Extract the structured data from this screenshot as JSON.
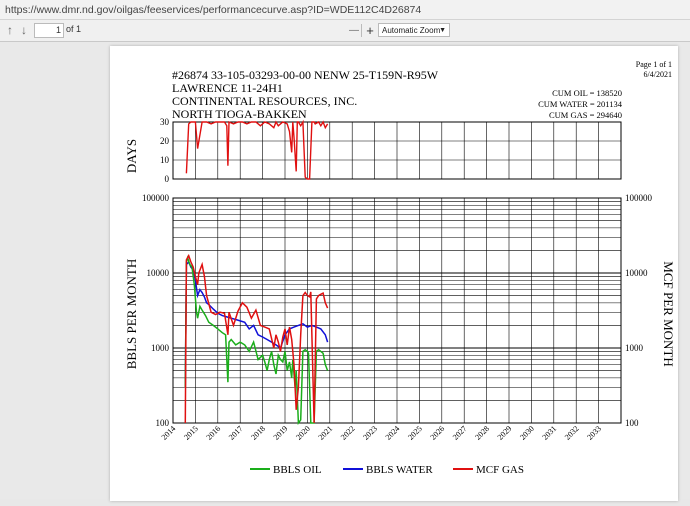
{
  "browser": {
    "url": "https://www.dmr.nd.gov/oilgas/feeservices/performancecurve.asp?ID=WDE112C4D26874"
  },
  "pdf_toolbar": {
    "page_number": "1",
    "page_total": "of 1",
    "zoom_label": "Automatic Zoom",
    "zoom_out": "—",
    "zoom_in": "+"
  },
  "report": {
    "page_label": "Page 1 of 1",
    "date": "6/4/2021",
    "header_line1": "#26874   33-105-03293-00-00   NENW 25-T159N-R95W",
    "header_line2": "LAWRENCE  11-24H1",
    "header_line3": "CONTINENTAL RESOURCES, INC.",
    "header_line4": "NORTH TIOGA-BAKKEN",
    "cum_oil": "CUM OIL = 138520",
    "cum_water": "CUM WATER = 201134",
    "cum_gas": "CUM GAS = 294640",
    "days_axis_label": "DAYS",
    "left_axis_label": "BBLS PER MONTH",
    "right_axis_label": "MCF PER MONTH",
    "days_ticks": [
      "30",
      "20",
      "10",
      "0"
    ],
    "log_ticks": [
      "100000",
      "10000",
      "1000",
      "100"
    ],
    "year_labels": [
      "2014",
      "2015",
      "2016",
      "2017",
      "2018",
      "2019",
      "2020",
      "2021",
      "2022",
      "2023",
      "2024",
      "2025",
      "2026",
      "2027",
      "2028",
      "2029",
      "2030",
      "2031",
      "2032",
      "2033"
    ],
    "legend": {
      "oil": "BBLS OIL",
      "water": "BBLS WATER",
      "gas": "MCF GAS"
    }
  },
  "colors": {
    "oil": "#1aae1a",
    "water": "#1010d8",
    "gas": "#e01010"
  },
  "chart_data": {
    "type": "line",
    "x_range": [
      2014,
      2034
    ],
    "days": {
      "y_range": [
        0,
        30
      ],
      "x": [
        2014.6,
        2014.7,
        2014.8,
        2015.0,
        2015.1,
        2015.3,
        2015.5,
        2015.7,
        2015.9,
        2016.1,
        2016.3,
        2016.4,
        2016.45,
        2016.5,
        2016.7,
        2016.9,
        2017.1,
        2017.3,
        2017.5,
        2017.7,
        2017.9,
        2018.1,
        2018.3,
        2018.5,
        2018.6,
        2018.7,
        2018.9,
        2019.1,
        2019.2,
        2019.3,
        2019.35,
        2019.4,
        2019.5,
        2019.55,
        2019.6,
        2019.7,
        2019.8,
        2019.9,
        2020.0,
        2020.1,
        2020.2,
        2020.3,
        2020.35,
        2020.5,
        2020.6,
        2020.7,
        2020.8,
        2020.9
      ],
      "values": [
        3,
        29,
        30,
        30,
        16,
        30,
        30,
        29,
        30,
        30,
        30,
        28,
        7,
        30,
        29,
        30,
        30,
        29,
        30,
        30,
        28,
        30,
        29,
        27,
        30,
        28,
        30,
        29,
        25,
        14,
        30,
        22,
        4,
        30,
        30,
        28,
        30,
        1,
        0,
        0,
        30,
        30,
        29,
        30,
        28,
        30,
        27,
        29
      ]
    },
    "production": {
      "y_scale": "log",
      "y_range": [
        100,
        100000
      ],
      "series": [
        {
          "name": "BBLS OIL",
          "x": [
            2014.55,
            2014.6,
            2014.65,
            2014.75,
            2014.85,
            2014.95,
            2015.05,
            2015.1,
            2015.2,
            2015.3,
            2015.45,
            2015.6,
            2015.8,
            2016.0,
            2016.2,
            2016.35,
            2016.45,
            2016.5,
            2016.6,
            2016.8,
            2017.0,
            2017.2,
            2017.4,
            2017.6,
            2017.8,
            2018.0,
            2018.1,
            2018.2,
            2018.3,
            2018.4,
            2018.5,
            2018.6,
            2018.7,
            2018.8,
            2018.9,
            2019.0,
            2019.1,
            2019.2,
            2019.3,
            2019.35,
            2019.45,
            2019.5,
            2019.6,
            2019.7,
            2019.8,
            2019.9,
            2020.0,
            2020.05,
            2020.15,
            2020.3,
            2020.4,
            2020.5,
            2020.6,
            2020.7,
            2020.8,
            2020.9
          ],
          "values": [
            300,
            14000,
            16000,
            13000,
            12000,
            7000,
            3000,
            2500,
            3600,
            3200,
            2700,
            2200,
            2000,
            1800,
            1600,
            1500,
            350,
            1200,
            1300,
            1100,
            1200,
            1100,
            900,
            1200,
            700,
            800,
            650,
            500,
            700,
            900,
            600,
            450,
            800,
            700,
            650,
            900,
            500,
            650,
            400,
            700,
            300,
            500,
            100,
            110,
            900,
            950,
            900,
            850,
            100,
            100,
            900,
            950,
            900,
            850,
            600,
            500
          ]
        },
        {
          "name": "BBLS WATER",
          "x": [
            2014.55,
            2014.6,
            2014.7,
            2014.8,
            2014.9,
            2015.0,
            2015.1,
            2015.2,
            2015.3,
            2015.4,
            2015.5,
            2015.6,
            2015.8,
            2016.0,
            2016.2,
            2016.4,
            2016.6,
            2016.8,
            2017.0,
            2017.2,
            2017.4,
            2017.6,
            2017.8,
            2018.0,
            2018.2,
            2018.4,
            2018.6,
            2018.8,
            2019.0,
            2019.2,
            2019.4,
            2019.6,
            2019.8,
            2020.0,
            2020.2,
            2020.4,
            2020.6,
            2020.8,
            2020.9
          ],
          "values": [
            300,
            13000,
            14000,
            12000,
            11000,
            8000,
            5000,
            6000,
            5500,
            4800,
            4000,
            3800,
            3300,
            2900,
            2700,
            2600,
            2500,
            2400,
            2300,
            2200,
            1800,
            2000,
            1500,
            1400,
            1300,
            1200,
            1100,
            1000,
            1500,
            1800,
            1900,
            2000,
            2100,
            1900,
            2000,
            1900,
            1800,
            1500,
            1200
          ]
        },
        {
          "name": "MCF GAS",
          "x": [
            2014.55,
            2014.6,
            2014.7,
            2014.8,
            2014.9,
            2015.0,
            2015.1,
            2015.15,
            2015.3,
            2015.4,
            2015.5,
            2015.7,
            2015.9,
            2016.1,
            2016.3,
            2016.45,
            2016.5,
            2016.7,
            2016.9,
            2017.1,
            2017.3,
            2017.5,
            2017.7,
            2017.9,
            2018.1,
            2018.3,
            2018.5,
            2018.6,
            2018.7,
            2018.8,
            2018.9,
            2019.0,
            2019.1,
            2019.2,
            2019.3,
            2019.4,
            2019.5,
            2019.6,
            2019.7,
            2019.8,
            2019.9,
            2020.0,
            2020.1,
            2020.15,
            2020.3,
            2020.4,
            2020.5,
            2020.6,
            2020.7,
            2020.8,
            2020.9
          ],
          "values": [
            100,
            15000,
            17000,
            14000,
            12000,
            9000,
            7000,
            10000,
            13000,
            9000,
            5000,
            3000,
            2800,
            3000,
            2900,
            1500,
            3000,
            2000,
            3100,
            4000,
            3500,
            2500,
            3200,
            2000,
            1900,
            1800,
            1000,
            1500,
            1200,
            900,
            1400,
            1800,
            1100,
            1900,
            1300,
            600,
            150,
            300,
            1500,
            5000,
            5500,
            5000,
            4800,
            5600,
            100,
            4500,
            5000,
            5200,
            5400,
            4000,
            3400
          ]
        }
      ]
    }
  }
}
